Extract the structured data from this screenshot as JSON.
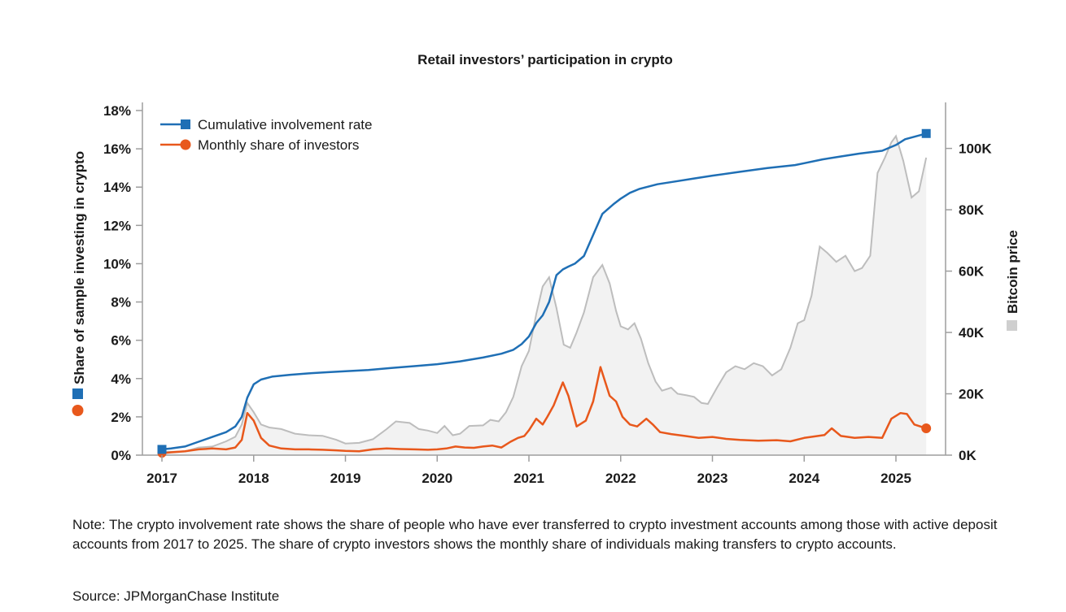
{
  "chart_data": {
    "type": "line",
    "title": "Retail investors’ participation in crypto",
    "ylabel": "Share of sample investing in crypto",
    "y2label": "Bitcoin price",
    "ylim": [
      0,
      18
    ],
    "y2lim": [
      0,
      115000
    ],
    "xlim": [
      2017,
      2025.4
    ],
    "x_ticks": [
      "2017",
      "2018",
      "2019",
      "2020",
      "2021",
      "2022",
      "2023",
      "2024",
      "2025"
    ],
    "y_ticks": [
      "0%",
      "2%",
      "4%",
      "6%",
      "8%",
      "10%",
      "12%",
      "14%",
      "16%",
      "18%"
    ],
    "y2_ticks": [
      "0K",
      "20K",
      "40K",
      "60K",
      "80K",
      "100K"
    ],
    "legend_position": "top-left",
    "grid": false,
    "series": [
      {
        "name": "Cumulative involvement rate",
        "axis": "left",
        "color": "#1f6fb5",
        "x": [
          2017,
          2017.1,
          2017.25,
          2017.4,
          2017.55,
          2017.7,
          2017.8,
          2017.87,
          2017.93,
          2018.0,
          2018.08,
          2018.2,
          2018.4,
          2018.6,
          2018.8,
          2019.0,
          2019.25,
          2019.5,
          2019.75,
          2020.0,
          2020.25,
          2020.5,
          2020.7,
          2020.83,
          2020.92,
          2021.0,
          2021.08,
          2021.15,
          2021.22,
          2021.3,
          2021.37,
          2021.43,
          2021.5,
          2021.6,
          2021.7,
          2021.8,
          2021.92,
          2022.0,
          2022.1,
          2022.2,
          2022.4,
          2022.6,
          2022.8,
          2023.0,
          2023.3,
          2023.6,
          2023.9,
          2024.0,
          2024.2,
          2024.4,
          2024.6,
          2024.85,
          2025.0,
          2025.1,
          2025.33
        ],
        "values": [
          0.3,
          0.35,
          0.45,
          0.7,
          0.95,
          1.2,
          1.5,
          2.0,
          3.0,
          3.7,
          3.95,
          4.1,
          4.2,
          4.27,
          4.33,
          4.38,
          4.45,
          4.55,
          4.65,
          4.75,
          4.9,
          5.1,
          5.3,
          5.5,
          5.8,
          6.2,
          6.9,
          7.3,
          8.0,
          9.4,
          9.7,
          9.85,
          10.0,
          10.4,
          11.5,
          12.6,
          13.1,
          13.4,
          13.7,
          13.9,
          14.15,
          14.3,
          14.45,
          14.6,
          14.8,
          15.0,
          15.15,
          15.25,
          15.45,
          15.6,
          15.75,
          15.9,
          16.2,
          16.5,
          16.8
        ]
      },
      {
        "name": "Monthly share of investors",
        "axis": "left",
        "color": "#e8581c",
        "x": [
          2017,
          2017.1,
          2017.25,
          2017.4,
          2017.55,
          2017.7,
          2017.8,
          2017.87,
          2017.93,
          2018.0,
          2018.08,
          2018.17,
          2018.3,
          2018.45,
          2018.6,
          2018.75,
          2018.9,
          2019.0,
          2019.15,
          2019.3,
          2019.45,
          2019.6,
          2019.75,
          2019.9,
          2020.0,
          2020.1,
          2020.2,
          2020.3,
          2020.4,
          2020.5,
          2020.6,
          2020.7,
          2020.8,
          2020.88,
          2020.95,
          2021.0,
          2021.08,
          2021.15,
          2021.2,
          2021.27,
          2021.37,
          2021.43,
          2021.52,
          2021.62,
          2021.7,
          2021.78,
          2021.88,
          2021.95,
          2022.02,
          2022.1,
          2022.18,
          2022.28,
          2022.35,
          2022.43,
          2022.55,
          2022.7,
          2022.85,
          2023.0,
          2023.15,
          2023.3,
          2023.5,
          2023.7,
          2023.85,
          2024.0,
          2024.15,
          2024.22,
          2024.3,
          2024.4,
          2024.55,
          2024.7,
          2024.85,
          2024.95,
          2025.05,
          2025.12,
          2025.2,
          2025.33
        ],
        "values": [
          0.1,
          0.15,
          0.2,
          0.3,
          0.35,
          0.3,
          0.4,
          0.8,
          2.2,
          1.8,
          0.9,
          0.5,
          0.35,
          0.3,
          0.3,
          0.28,
          0.25,
          0.22,
          0.2,
          0.3,
          0.35,
          0.32,
          0.3,
          0.28,
          0.3,
          0.35,
          0.45,
          0.4,
          0.38,
          0.45,
          0.5,
          0.4,
          0.7,
          0.9,
          1.0,
          1.3,
          1.9,
          1.6,
          2.0,
          2.6,
          3.8,
          3.1,
          1.5,
          1.8,
          2.8,
          4.6,
          3.1,
          2.8,
          2.0,
          1.6,
          1.5,
          1.9,
          1.6,
          1.2,
          1.1,
          1.0,
          0.9,
          0.95,
          0.85,
          0.8,
          0.75,
          0.78,
          0.72,
          0.9,
          1.0,
          1.05,
          1.4,
          1.0,
          0.9,
          0.95,
          0.9,
          1.9,
          2.2,
          2.15,
          1.6,
          1.4
        ]
      },
      {
        "name": "Bitcoin price",
        "axis": "right",
        "color": "#bdbdbd",
        "fill": "#f2f2f2",
        "x": [
          2017,
          2017.1,
          2017.25,
          2017.4,
          2017.55,
          2017.7,
          2017.8,
          2017.87,
          2017.93,
          2018.0,
          2018.08,
          2018.17,
          2018.3,
          2018.45,
          2018.6,
          2018.75,
          2018.9,
          2019.0,
          2019.15,
          2019.3,
          2019.45,
          2019.55,
          2019.7,
          2019.8,
          2019.9,
          2020.0,
          2020.08,
          2020.17,
          2020.25,
          2020.35,
          2020.5,
          2020.58,
          2020.67,
          2020.75,
          2020.83,
          2020.92,
          2021.0,
          2021.08,
          2021.15,
          2021.22,
          2021.3,
          2021.38,
          2021.45,
          2021.52,
          2021.6,
          2021.7,
          2021.8,
          2021.88,
          2021.95,
          2022.0,
          2022.08,
          2022.15,
          2022.22,
          2022.3,
          2022.38,
          2022.45,
          2022.55,
          2022.62,
          2022.72,
          2022.8,
          2022.88,
          2022.95,
          2023.05,
          2023.15,
          2023.25,
          2023.35,
          2023.45,
          2023.55,
          2023.65,
          2023.75,
          2023.85,
          2023.93,
          2024.0,
          2024.08,
          2024.17,
          2024.25,
          2024.35,
          2024.45,
          2024.55,
          2024.63,
          2024.72,
          2024.8,
          2024.88,
          2024.95,
          2025.0,
          2025.08,
          2025.17,
          2025.25,
          2025.33
        ],
        "values": [
          1000,
          1100,
          1200,
          2500,
          2800,
          4500,
          6000,
          10000,
          17000,
          14000,
          10000,
          9000,
          8500,
          7000,
          6500,
          6300,
          5000,
          3800,
          4000,
          5200,
          8500,
          11000,
          10500,
          8500,
          8000,
          7200,
          9500,
          6500,
          7000,
          9500,
          9700,
          11500,
          11000,
          14000,
          19000,
          29000,
          34000,
          46000,
          55000,
          58000,
          48000,
          36000,
          35000,
          40000,
          46500,
          58000,
          62000,
          56000,
          47000,
          42000,
          41000,
          43000,
          38000,
          30000,
          24000,
          21000,
          22000,
          20000,
          19500,
          19000,
          17000,
          16700,
          22000,
          27000,
          29000,
          28000,
          30000,
          29000,
          26000,
          28000,
          35000,
          43000,
          44000,
          52000,
          68000,
          66000,
          63000,
          65000,
          60000,
          61000,
          65000,
          92000,
          97000,
          102000,
          104000,
          96000,
          84000,
          86000,
          97000
        ]
      }
    ]
  },
  "note": "Note: The crypto involvement rate shows the share of people who have ever transferred to crypto investment accounts among those with active deposit accounts from 2017 to 2025. The share of crypto investors shows the monthly share of individuals making transfers to crypto accounts.",
  "source": "Source: JPMorganChase Institute"
}
